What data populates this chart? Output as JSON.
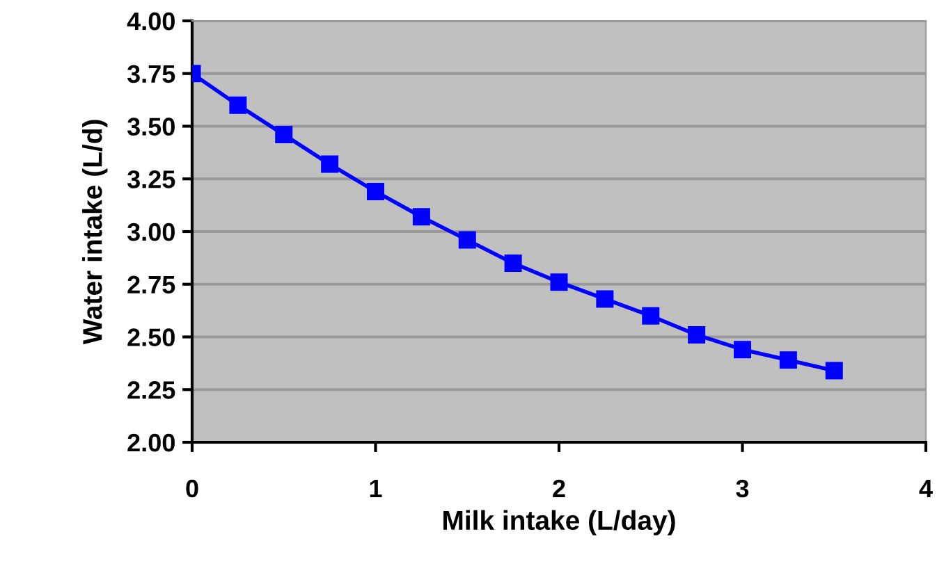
{
  "chart_data": {
    "type": "line",
    "xlabel": "Milk intake (L/day)",
    "ylabel": "Water intake (L/d)",
    "x": [
      0,
      0.25,
      0.5,
      0.75,
      1.0,
      1.25,
      1.5,
      1.75,
      2.0,
      2.25,
      2.5,
      2.75,
      3.0,
      3.25,
      3.5
    ],
    "series": [
      {
        "color": "#0000ff",
        "values": [
          3.75,
          3.6,
          3.46,
          3.32,
          3.19,
          3.07,
          2.96,
          2.85,
          2.76,
          2.68,
          2.6,
          2.51,
          2.44,
          2.39,
          2.34
        ]
      }
    ],
    "xlim": [
      0,
      4
    ],
    "xticks": [
      0,
      1,
      2,
      3,
      4
    ],
    "ylim": [
      2.0,
      4.0
    ],
    "yticks": [
      {
        "value": 2.0,
        "label": "2.00"
      },
      {
        "value": 2.25,
        "label": "2.25"
      },
      {
        "value": 2.5,
        "label": "2.50"
      },
      {
        "value": 2.75,
        "label": "2.75"
      },
      {
        "value": 3.0,
        "label": "3.00"
      },
      {
        "value": 3.25,
        "label": "3.25"
      },
      {
        "value": 3.5,
        "label": "3.50"
      },
      {
        "value": 3.75,
        "label": "3.75"
      },
      {
        "value": 4.0,
        "label": "4.00"
      }
    ],
    "grid": "y",
    "marker": "square",
    "line_style": "solid",
    "legend": false
  }
}
